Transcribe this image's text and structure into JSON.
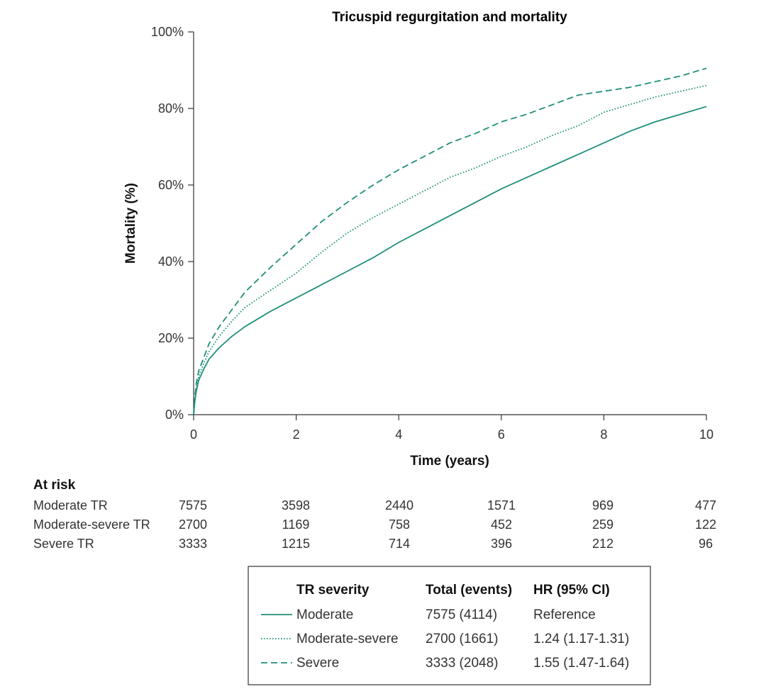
{
  "chart_data": {
    "type": "line",
    "title": "Tricuspid regurgitation and mortality",
    "xlabel": "Time (years)",
    "ylabel": "Mortality (%)",
    "xlim": [
      0,
      10
    ],
    "ylim": [
      0,
      100
    ],
    "x_ticks": [
      "0",
      "2",
      "4",
      "6",
      "8",
      "10"
    ],
    "y_ticks": [
      "0%",
      "20%",
      "40%",
      "60%",
      "80%",
      "100%"
    ],
    "line_color": "#1f8f7a",
    "series": [
      {
        "name": "Moderate",
        "style": "solid",
        "x": [
          0,
          0.02,
          0.05,
          0.1,
          0.2,
          0.3,
          0.5,
          0.75,
          1,
          1.5,
          2,
          2.5,
          3,
          3.5,
          4,
          4.5,
          5,
          5.5,
          6,
          6.5,
          7,
          7.5,
          8,
          8.5,
          9,
          9.5,
          10
        ],
        "values": [
          0,
          3,
          6,
          9,
          12,
          14.5,
          17.5,
          20.5,
          23,
          27,
          30.5,
          34,
          37.5,
          41,
          45,
          48.5,
          52,
          55.5,
          59,
          62,
          65,
          68,
          71,
          74,
          76.5,
          78.5,
          80.5
        ]
      },
      {
        "name": "Moderate-severe",
        "style": "dotted",
        "x": [
          0,
          0.02,
          0.05,
          0.1,
          0.2,
          0.3,
          0.5,
          0.75,
          1,
          1.5,
          2,
          2.5,
          3,
          3.5,
          4,
          4.5,
          5,
          5.5,
          6,
          6.5,
          7,
          7.5,
          8,
          8.5,
          9,
          9.5,
          10
        ],
        "values": [
          0,
          3.5,
          7,
          10,
          13.5,
          16.5,
          20.5,
          24.5,
          28,
          32.5,
          37,
          42.5,
          47.5,
          51.5,
          55,
          58.5,
          62,
          64.5,
          67.5,
          70,
          73,
          75.5,
          79,
          81,
          83,
          84.5,
          86
        ]
      },
      {
        "name": "Severe",
        "style": "dashed",
        "x": [
          0,
          0.02,
          0.05,
          0.1,
          0.2,
          0.3,
          0.5,
          0.75,
          1,
          1.5,
          2,
          2.5,
          3,
          3.5,
          4,
          4.5,
          5,
          5.5,
          6,
          6.5,
          7,
          7.5,
          8,
          8.5,
          9,
          9.5,
          10
        ],
        "values": [
          0,
          4,
          8,
          11.5,
          15,
          18.5,
          23,
          27.5,
          32,
          38.5,
          44.5,
          50.5,
          55.5,
          60,
          64,
          67.5,
          71,
          73.5,
          76.5,
          78.5,
          81,
          83.5,
          84.5,
          85.5,
          87,
          88.5,
          90.5
        ]
      }
    ]
  },
  "at_risk": {
    "heading": "At risk",
    "rows": [
      {
        "label": "Moderate TR",
        "values": [
          "7575",
          "3598",
          "2440",
          "1571",
          "969",
          "477"
        ]
      },
      {
        "label": "Moderate-severe TR",
        "values": [
          "2700",
          "1169",
          "758",
          "452",
          "259",
          "122"
        ]
      },
      {
        "label": "Severe TR",
        "values": [
          "3333",
          "1215",
          "714",
          "396",
          "212",
          "96"
        ]
      }
    ]
  },
  "legend": {
    "headers": [
      "TR severity",
      "Total (events)",
      "HR (95% CI)"
    ],
    "rows": [
      {
        "style": "solid",
        "label": "Moderate",
        "total": "7575 (4114)",
        "hr": "Reference"
      },
      {
        "style": "dotted",
        "label": "Moderate-severe",
        "total": "2700 (1661)",
        "hr": "1.24 (1.17-1.31)"
      },
      {
        "style": "dashed",
        "label": "Severe",
        "total": "3333 (2048)",
        "hr": "1.55 (1.47-1.64)"
      }
    ]
  }
}
